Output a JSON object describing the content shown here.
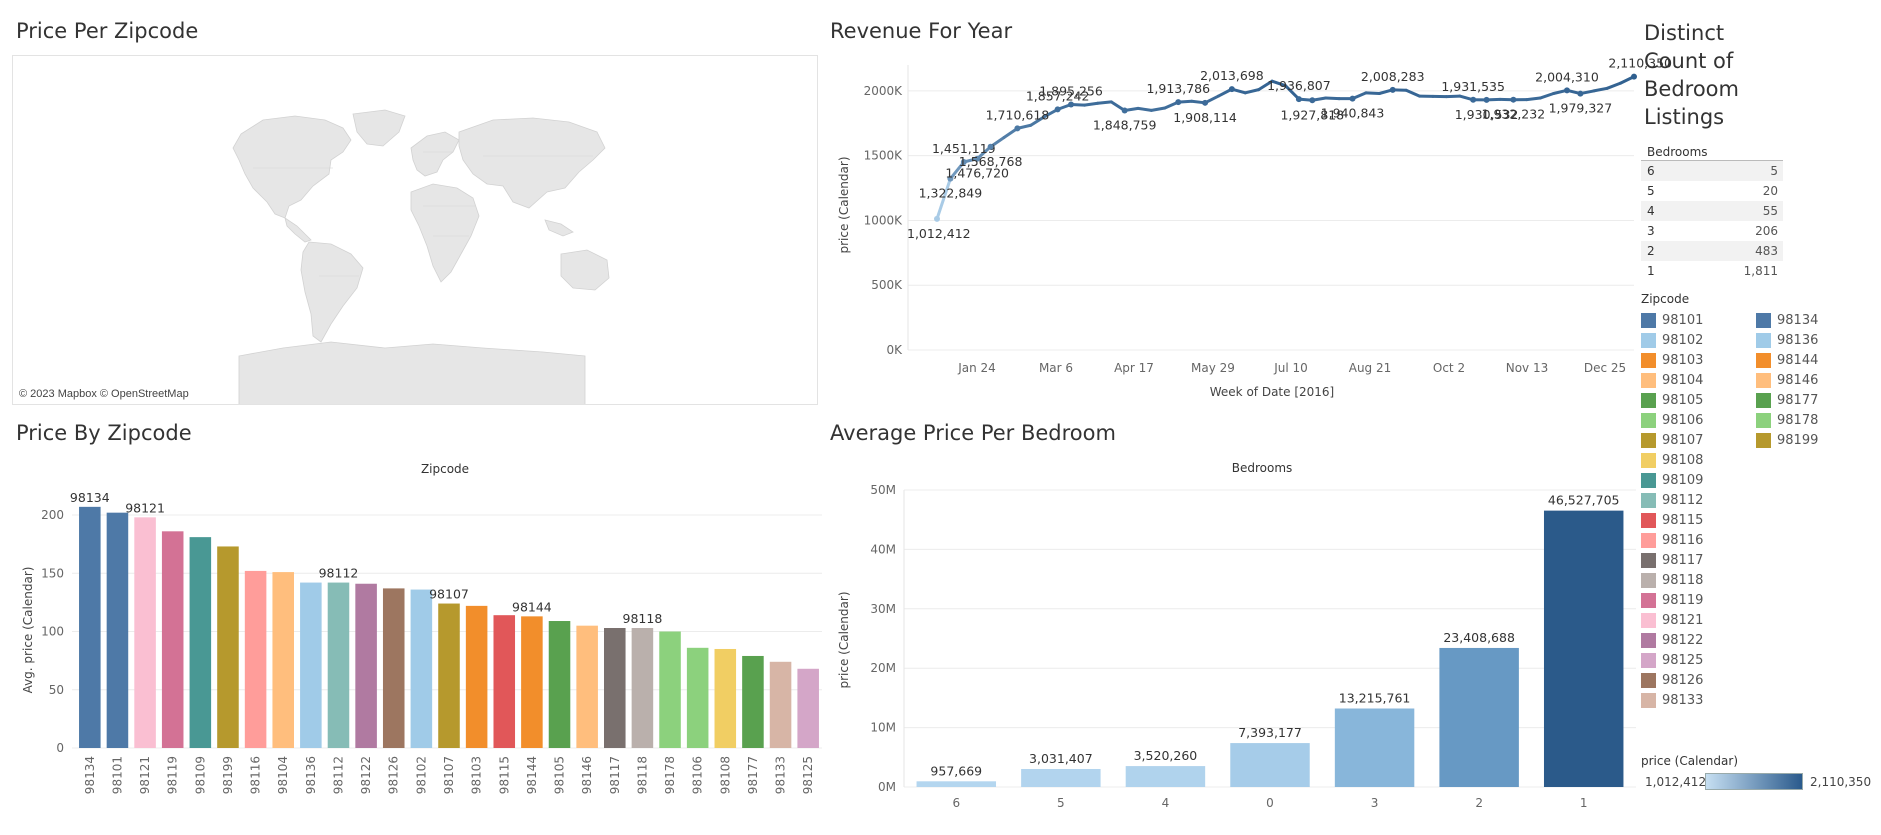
{
  "titles": {
    "price_per_zipcode": "Price Per Zipcode",
    "revenue_for_year": "Revenue For Year",
    "distinct_count": "Distinct Count of Bedroom Listings",
    "price_by_zipcode": "Price By Zipcode",
    "avg_price_per_bedroom": "Average Price Per Bedroom"
  },
  "map": {
    "attribution": "© 2023 Mapbox © OpenStreetMap"
  },
  "colors": {
    "land": "#e6e6e6",
    "line": "#2f5f8f",
    "line_light": "#a9cbe6",
    "grid": "#ececec"
  },
  "bedroom_table": {
    "header": "Bedrooms",
    "rows": [
      {
        "bedrooms": "6",
        "count": "5"
      },
      {
        "bedrooms": "5",
        "count": "20"
      },
      {
        "bedrooms": "4",
        "count": "55"
      },
      {
        "bedrooms": "3",
        "count": "206"
      },
      {
        "bedrooms": "2",
        "count": "483"
      },
      {
        "bedrooms": "1",
        "count": "1,811"
      }
    ]
  },
  "zip_legend": {
    "title": "Zipcode",
    "items": [
      {
        "zip": "98101",
        "color": "#4e79a7"
      },
      {
        "zip": "98102",
        "color": "#a0cbe8"
      },
      {
        "zip": "98103",
        "color": "#f28e2b"
      },
      {
        "zip": "98104",
        "color": "#ffbe7d"
      },
      {
        "zip": "98105",
        "color": "#59a14f"
      },
      {
        "zip": "98106",
        "color": "#8cd17d"
      },
      {
        "zip": "98107",
        "color": "#b6992d"
      },
      {
        "zip": "98108",
        "color": "#f1ce63"
      },
      {
        "zip": "98109",
        "color": "#499894"
      },
      {
        "zip": "98112",
        "color": "#86bcb6"
      },
      {
        "zip": "98115",
        "color": "#e15759"
      },
      {
        "zip": "98116",
        "color": "#ff9d9a"
      },
      {
        "zip": "98117",
        "color": "#79706e"
      },
      {
        "zip": "98118",
        "color": "#bab0ac"
      },
      {
        "zip": "98119",
        "color": "#d37295"
      },
      {
        "zip": "98121",
        "color": "#fabfd2"
      },
      {
        "zip": "98122",
        "color": "#b07aa1"
      },
      {
        "zip": "98125",
        "color": "#d4a6c8"
      },
      {
        "zip": "98126",
        "color": "#9d7660"
      },
      {
        "zip": "98133",
        "color": "#d7b5a6"
      },
      {
        "zip": "98134",
        "color": "#4e79a7"
      },
      {
        "zip": "98136",
        "color": "#a0cbe8"
      },
      {
        "zip": "98144",
        "color": "#f28e2b"
      },
      {
        "zip": "98146",
        "color": "#ffbe7d"
      },
      {
        "zip": "98177",
        "color": "#59a14f"
      },
      {
        "zip": "98178",
        "color": "#8cd17d"
      },
      {
        "zip": "98199",
        "color": "#b6992d"
      }
    ]
  },
  "color_legend": {
    "title": "price (Calendar)",
    "min": "1,012,412",
    "max": "2,110,350"
  },
  "chart_data": [
    {
      "id": "revenue",
      "type": "line",
      "title": "Revenue For Year",
      "xlabel": "Week of Date [2016]",
      "ylabel": "price (Calendar)",
      "x_ticks": [
        "Jan 24",
        "Mar 6",
        "Apr 17",
        "May 29",
        "Jul 10",
        "Aug 21",
        "Oct 2",
        "Nov 13",
        "Dec 25"
      ],
      "y_ticks": [
        "0K",
        "500K",
        "1000K",
        "1500K",
        "2000K"
      ],
      "ylim": [
        0,
        2200000
      ],
      "x": [
        1,
        2,
        3,
        4,
        5,
        6,
        7,
        8,
        9,
        10,
        11,
        12,
        13,
        14,
        15,
        16,
        17,
        18,
        19,
        20,
        21,
        22,
        23,
        24,
        25,
        26,
        27,
        28,
        29,
        30,
        31,
        32,
        33,
        34,
        35,
        36,
        37,
        38,
        39,
        40,
        41,
        42,
        43,
        44,
        45,
        46,
        47,
        48,
        49,
        50,
        51,
        52,
        53
      ],
      "values": [
        1012412,
        1322849,
        1451119,
        1476720,
        1568768,
        1640000,
        1710618,
        1735000,
        1800000,
        1857242,
        1895256,
        1890000,
        1905000,
        1915000,
        1848759,
        1865000,
        1850000,
        1868000,
        1913786,
        1920000,
        1908114,
        1960000,
        2013698,
        1985000,
        2010000,
        2075000,
        2040000,
        1936807,
        1927818,
        1945000,
        1940000,
        1940843,
        1985000,
        1980000,
        2008283,
        2005000,
        1960000,
        1958000,
        1956000,
        1960000,
        1931535,
        1930532,
        1935000,
        1932232,
        1933000,
        1945000,
        1980000,
        2004310,
        1979327,
        2000000,
        2020000,
        2060000,
        2110350
      ],
      "labels": [
        {
          "i": 0,
          "text": "1,012,412",
          "pos": "below"
        },
        {
          "i": 1,
          "text": "1,322,849",
          "pos": "below"
        },
        {
          "i": 2,
          "text": "1,451,119",
          "pos": "above"
        },
        {
          "i": 3,
          "text": "1,476,720",
          "pos": "below"
        },
        {
          "i": 4,
          "text": "1,568,768",
          "pos": "below"
        },
        {
          "i": 6,
          "text": "1,710,618",
          "pos": "above"
        },
        {
          "i": 9,
          "text": "1,857,242",
          "pos": "above"
        },
        {
          "i": 10,
          "text": "1,895,256",
          "pos": "above"
        },
        {
          "i": 14,
          "text": "1,848,759",
          "pos": "below"
        },
        {
          "i": 18,
          "text": "1,913,786",
          "pos": "above"
        },
        {
          "i": 20,
          "text": "1,908,114",
          "pos": "below"
        },
        {
          "i": 22,
          "text": "2,013,698",
          "pos": "above"
        },
        {
          "i": 27,
          "text": "1,936,807",
          "pos": "above"
        },
        {
          "i": 28,
          "text": "1,927,818",
          "pos": "below"
        },
        {
          "i": 31,
          "text": "1,940,843",
          "pos": "below"
        },
        {
          "i": 34,
          "text": "2,008,283",
          "pos": "above"
        },
        {
          "i": 40,
          "text": "1,931,535",
          "pos": "above"
        },
        {
          "i": 41,
          "text": "1,930,532",
          "pos": "below"
        },
        {
          "i": 43,
          "text": "1,932,232",
          "pos": "below"
        },
        {
          "i": 47,
          "text": "2,004,310",
          "pos": "above"
        },
        {
          "i": 48,
          "text": "1,979,327",
          "pos": "below"
        },
        {
          "i": 52,
          "text": "2,110,350",
          "pos": "above"
        }
      ]
    },
    {
      "id": "zipcode_bars",
      "type": "bar",
      "title": "Price By Zipcode",
      "header": "Zipcode",
      "ylabel": "Avg. price (Calendar)",
      "y_ticks": [
        "0",
        "50",
        "100",
        "150",
        "200"
      ],
      "ylim": [
        0,
        220
      ],
      "categories": [
        "98134",
        "98101",
        "98121",
        "98119",
        "98109",
        "98199",
        "98116",
        "98104",
        "98136",
        "98112",
        "98122",
        "98126",
        "98102",
        "98107",
        "98103",
        "98115",
        "98144",
        "98105",
        "98146",
        "98117",
        "98118",
        "98178",
        "98106",
        "98108",
        "98177",
        "98133",
        "98125"
      ],
      "values": [
        207,
        202,
        198,
        186,
        181,
        173,
        152,
        151,
        142,
        142,
        141,
        137,
        136,
        124,
        122,
        114,
        113,
        109,
        105,
        103,
        103,
        100,
        86,
        85,
        79,
        74,
        68
      ],
      "colors": [
        "#4e79a7",
        "#4e79a7",
        "#fabfd2",
        "#d37295",
        "#499894",
        "#b6992d",
        "#ff9d9a",
        "#ffbe7d",
        "#a0cbe8",
        "#86bcb6",
        "#b07aa1",
        "#9d7660",
        "#a0cbe8",
        "#b6992d",
        "#f28e2b",
        "#e15759",
        "#f28e2b",
        "#59a14f",
        "#ffbe7d",
        "#79706e",
        "#bab0ac",
        "#8cd17d",
        "#8cd17d",
        "#f1ce63",
        "#59a14f",
        "#d7b5a6",
        "#d4a6c8"
      ],
      "bar_labels": [
        {
          "i": 0,
          "text": "98134"
        },
        {
          "i": 2,
          "text": "98121"
        },
        {
          "i": 9,
          "text": "98112"
        },
        {
          "i": 13,
          "text": "98107"
        },
        {
          "i": 16,
          "text": "98144"
        },
        {
          "i": 20,
          "text": "98118"
        }
      ]
    },
    {
      "id": "bedroom_bars",
      "type": "bar",
      "title": "Average Price Per Bedroom",
      "header": "Bedrooms",
      "ylabel": "price (Calendar)",
      "y_ticks": [
        "0M",
        "10M",
        "20M",
        "30M",
        "40M",
        "50M"
      ],
      "ylim": [
        0,
        50000000
      ],
      "categories": [
        "6",
        "5",
        "4",
        "0",
        "3",
        "2",
        "1"
      ],
      "values": [
        957669,
        3031407,
        3520260,
        7393177,
        13215761,
        23408688,
        46527705
      ],
      "value_labels": [
        "957,669",
        "3,031,407",
        "3,520,260",
        "7,393,177",
        "13,215,761",
        "23,408,688",
        "46,527,705"
      ],
      "colors": [
        "#b4d6ef",
        "#b2d4ee",
        "#b0d3ed",
        "#a6cce9",
        "#88b6da",
        "#6799c4",
        "#2b5a8a"
      ]
    }
  ]
}
